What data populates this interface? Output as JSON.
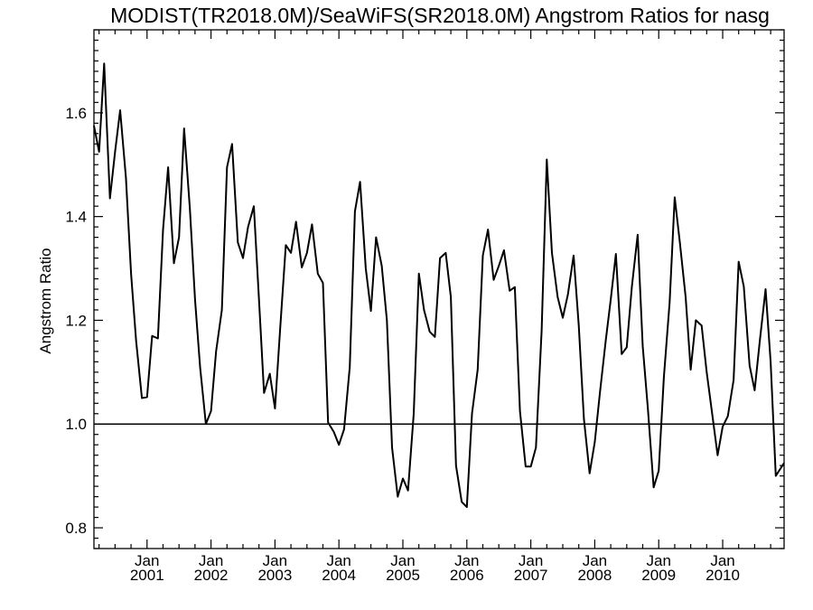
{
  "chart_data": {
    "type": "line",
    "title": "MODIST(TR2018.0M)/SeaWiFS(SR2018.0M)  Angstrom Ratios for nasg",
    "ylabel": "Angstrom Ratio",
    "xlabel": "",
    "xlim": [
      2000.17,
      2010.96
    ],
    "ylim": [
      0.76,
      1.76
    ],
    "reference_line": 1.0,
    "y_ticks": [
      {
        "value": 0.8,
        "label": "0.8"
      },
      {
        "value": 1.0,
        "label": "1.0"
      },
      {
        "value": 1.2,
        "label": "1.2"
      },
      {
        "value": 1.4,
        "label": "1.4"
      },
      {
        "value": 1.6,
        "label": "1.6"
      }
    ],
    "x_ticks": [
      {
        "value": 2001.0,
        "month": "Jan",
        "year": "2001"
      },
      {
        "value": 2002.0,
        "month": "Jan",
        "year": "2002"
      },
      {
        "value": 2003.0,
        "month": "Jan",
        "year": "2003"
      },
      {
        "value": 2004.0,
        "month": "Jan",
        "year": "2004"
      },
      {
        "value": 2005.0,
        "month": "Jan",
        "year": "2005"
      },
      {
        "value": 2006.0,
        "month": "Jan",
        "year": "2006"
      },
      {
        "value": 2007.0,
        "month": "Jan",
        "year": "2007"
      },
      {
        "value": 2008.0,
        "month": "Jan",
        "year": "2008"
      },
      {
        "value": 2009.0,
        "month": "Jan",
        "year": "2009"
      },
      {
        "value": 2010.0,
        "month": "Jan",
        "year": "2010"
      }
    ],
    "series": [
      {
        "points": [
          [
            2000.17,
            1.575
          ],
          [
            2000.25,
            1.525
          ],
          [
            2000.33,
            1.695
          ],
          [
            2000.42,
            1.435
          ],
          [
            2000.5,
            1.525
          ],
          [
            2000.58,
            1.605
          ],
          [
            2000.67,
            1.475
          ],
          [
            2000.75,
            1.29
          ],
          [
            2000.83,
            1.16
          ],
          [
            2000.92,
            1.05
          ],
          [
            2001.0,
            1.052
          ],
          [
            2001.08,
            1.17
          ],
          [
            2001.17,
            1.165
          ],
          [
            2001.25,
            1.375
          ],
          [
            2001.33,
            1.495
          ],
          [
            2001.42,
            1.31
          ],
          [
            2001.5,
            1.36
          ],
          [
            2001.58,
            1.57
          ],
          [
            2001.67,
            1.415
          ],
          [
            2001.75,
            1.24
          ],
          [
            2001.83,
            1.11
          ],
          [
            2001.92,
            1.0
          ],
          [
            2002.0,
            1.025
          ],
          [
            2002.08,
            1.14
          ],
          [
            2002.17,
            1.22
          ],
          [
            2002.25,
            1.495
          ],
          [
            2002.33,
            1.54
          ],
          [
            2002.42,
            1.35
          ],
          [
            2002.5,
            1.32
          ],
          [
            2002.58,
            1.38
          ],
          [
            2002.67,
            1.42
          ],
          [
            2002.75,
            1.24
          ],
          [
            2002.83,
            1.06
          ],
          [
            2002.92,
            1.097
          ],
          [
            2003.0,
            1.03
          ],
          [
            2003.08,
            1.18
          ],
          [
            2003.17,
            1.345
          ],
          [
            2003.25,
            1.33
          ],
          [
            2003.33,
            1.39
          ],
          [
            2003.42,
            1.302
          ],
          [
            2003.5,
            1.33
          ],
          [
            2003.58,
            1.385
          ],
          [
            2003.67,
            1.29
          ],
          [
            2003.75,
            1.272
          ],
          [
            2003.83,
            1.003
          ],
          [
            2003.92,
            0.985
          ],
          [
            2004.0,
            0.96
          ],
          [
            2004.08,
            0.99
          ],
          [
            2004.17,
            1.11
          ],
          [
            2004.25,
            1.41
          ],
          [
            2004.33,
            1.467
          ],
          [
            2004.42,
            1.3
          ],
          [
            2004.5,
            1.218
          ],
          [
            2004.58,
            1.36
          ],
          [
            2004.67,
            1.305
          ],
          [
            2004.75,
            1.2
          ],
          [
            2004.83,
            0.955
          ],
          [
            2004.92,
            0.86
          ],
          [
            2005.0,
            0.895
          ],
          [
            2005.08,
            0.872
          ],
          [
            2005.17,
            1.02
          ],
          [
            2005.25,
            1.29
          ],
          [
            2005.33,
            1.22
          ],
          [
            2005.42,
            1.178
          ],
          [
            2005.5,
            1.168
          ],
          [
            2005.58,
            1.32
          ],
          [
            2005.67,
            1.33
          ],
          [
            2005.75,
            1.245
          ],
          [
            2005.83,
            0.92
          ],
          [
            2005.92,
            0.85
          ],
          [
            2006.0,
            0.84
          ],
          [
            2006.08,
            1.02
          ],
          [
            2006.17,
            1.105
          ],
          [
            2006.25,
            1.325
          ],
          [
            2006.33,
            1.375
          ],
          [
            2006.42,
            1.278
          ],
          [
            2006.5,
            1.305
          ],
          [
            2006.58,
            1.335
          ],
          [
            2006.67,
            1.257
          ],
          [
            2006.75,
            1.264
          ],
          [
            2006.83,
            1.025
          ],
          [
            2006.92,
            0.918
          ],
          [
            2007.0,
            0.918
          ],
          [
            2007.08,
            0.955
          ],
          [
            2007.17,
            1.18
          ],
          [
            2007.25,
            1.51
          ],
          [
            2007.33,
            1.33
          ],
          [
            2007.42,
            1.245
          ],
          [
            2007.5,
            1.205
          ],
          [
            2007.58,
            1.25
          ],
          [
            2007.67,
            1.325
          ],
          [
            2007.75,
            1.19
          ],
          [
            2007.83,
            1.01
          ],
          [
            2007.92,
            0.905
          ],
          [
            2008.0,
            0.965
          ],
          [
            2008.08,
            1.06
          ],
          [
            2008.17,
            1.16
          ],
          [
            2008.25,
            1.24
          ],
          [
            2008.33,
            1.328
          ],
          [
            2008.42,
            1.135
          ],
          [
            2008.5,
            1.148
          ],
          [
            2008.58,
            1.265
          ],
          [
            2008.67,
            1.365
          ],
          [
            2008.75,
            1.15
          ],
          [
            2008.83,
            1.03
          ],
          [
            2008.92,
            0.878
          ],
          [
            2009.0,
            0.91
          ],
          [
            2009.08,
            1.09
          ],
          [
            2009.17,
            1.235
          ],
          [
            2009.25,
            1.437
          ],
          [
            2009.33,
            1.35
          ],
          [
            2009.42,
            1.245
          ],
          [
            2009.5,
            1.105
          ],
          [
            2009.58,
            1.2
          ],
          [
            2009.67,
            1.19
          ],
          [
            2009.75,
            1.1
          ],
          [
            2009.83,
            1.025
          ],
          [
            2009.92,
            0.94
          ],
          [
            2010.0,
            0.995
          ],
          [
            2010.08,
            1.015
          ],
          [
            2010.17,
            1.085
          ],
          [
            2010.25,
            1.313
          ],
          [
            2010.33,
            1.265
          ],
          [
            2010.42,
            1.113
          ],
          [
            2010.5,
            1.065
          ],
          [
            2010.58,
            1.16
          ],
          [
            2010.67,
            1.26
          ],
          [
            2010.75,
            1.12
          ],
          [
            2010.83,
            0.9
          ],
          [
            2010.96,
            0.925
          ]
        ]
      }
    ]
  }
}
